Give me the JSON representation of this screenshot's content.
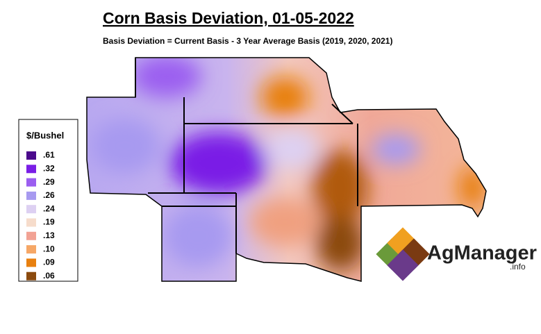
{
  "header": {
    "title": "Corn Basis Deviation, 01-05-2022",
    "subtitle": "Basis Deviation = Current Basis - 3 Year Average Basis (2019, 2020, 2021)"
  },
  "legend": {
    "title": "$/Bushel",
    "items": [
      {
        "label": ".61",
        "color": "#4b0a8c"
      },
      {
        "label": ".32",
        "color": "#7a1ee6"
      },
      {
        "label": ".29",
        "color": "#9b5ef0"
      },
      {
        "label": ".26",
        "color": "#a79af0"
      },
      {
        "label": ".24",
        "color": "#ddd0f2"
      },
      {
        "label": ".19",
        "color": "#f6dccb"
      },
      {
        "label": ".13",
        "color": "#f2a294"
      },
      {
        "label": ".10",
        "color": "#f6a766"
      },
      {
        "label": ".09",
        "color": "#e8800f"
      },
      {
        "label": ".06",
        "color": "#8b4a0e"
      }
    ]
  },
  "logo": {
    "name": "AgManager",
    "suffix": ".info"
  }
}
